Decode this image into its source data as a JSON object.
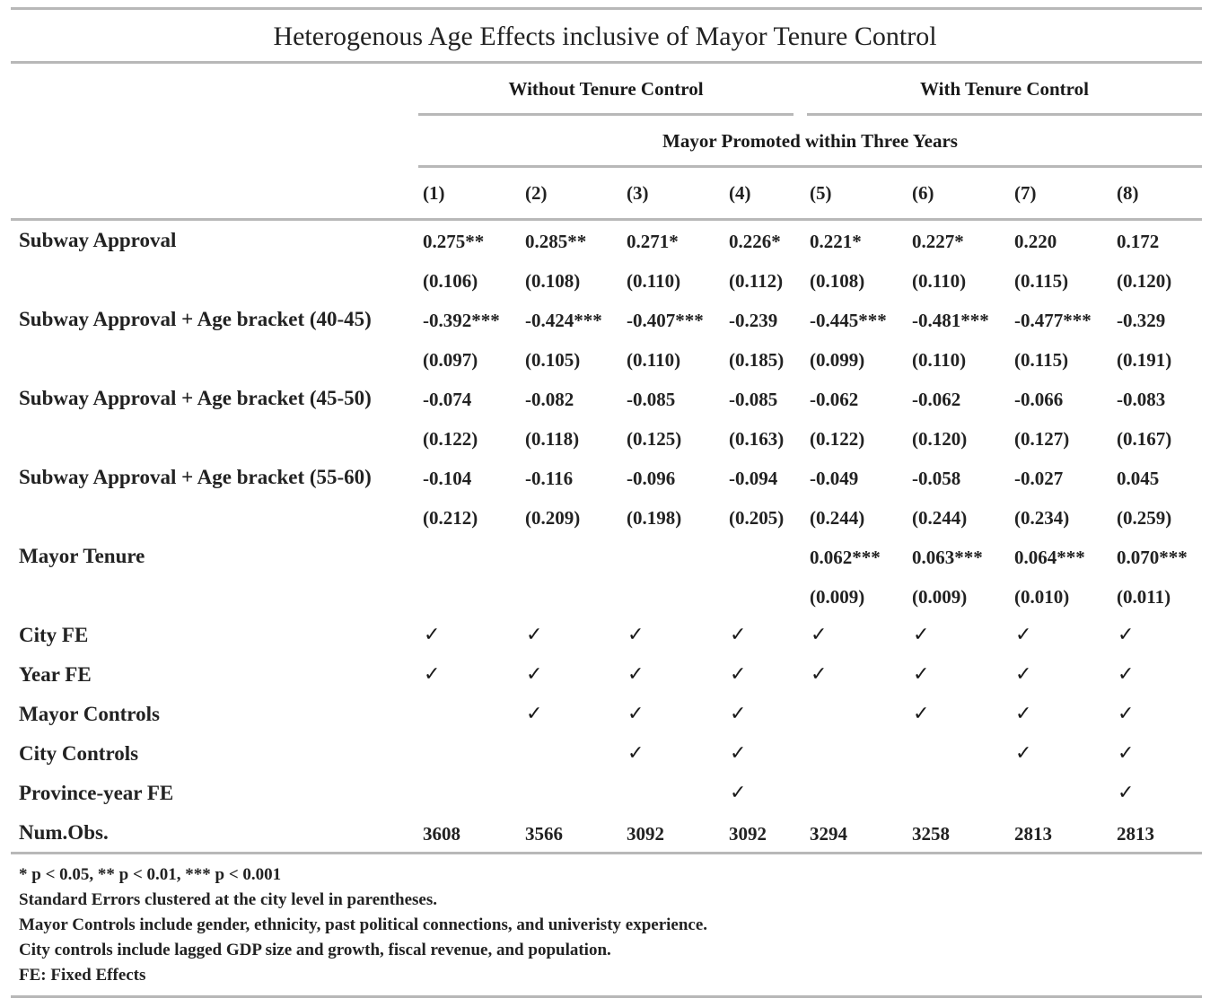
{
  "caption": "Heterogenous Age Effects inclusive of Mayor Tenure Control",
  "group_headers": [
    "Without Tenure Control",
    "With Tenure Control"
  ],
  "dependent_variable": "Mayor Promoted within Three Years",
  "columns": [
    "(1)",
    "(2)",
    "(3)",
    "(4)",
    "(5)",
    "(6)",
    "(7)",
    "(8)"
  ],
  "rows": [
    {
      "label": "Subway Approval",
      "coef": [
        "0.275**",
        "0.285**",
        "0.271*",
        "0.226*",
        "0.221*",
        "0.227*",
        "0.220",
        "0.172"
      ],
      "se": [
        "(0.106)",
        "(0.108)",
        "(0.110)",
        "(0.112)",
        "(0.108)",
        "(0.110)",
        "(0.115)",
        "(0.120)"
      ]
    },
    {
      "label": "Subway Approval + Age bracket (40-45)",
      "coef": [
        "-0.392***",
        "-0.424***",
        "-0.407***",
        "-0.239",
        "-0.445***",
        "-0.481***",
        "-0.477***",
        "-0.329"
      ],
      "se": [
        "(0.097)",
        "(0.105)",
        "(0.110)",
        "(0.185)",
        "(0.099)",
        "(0.110)",
        "(0.115)",
        "(0.191)"
      ]
    },
    {
      "label": "Subway Approval + Age bracket (45-50)",
      "coef": [
        "-0.074",
        "-0.082",
        "-0.085",
        "-0.085",
        "-0.062",
        "-0.062",
        "-0.066",
        "-0.083"
      ],
      "se": [
        "(0.122)",
        "(0.118)",
        "(0.125)",
        "(0.163)",
        "(0.122)",
        "(0.120)",
        "(0.127)",
        "(0.167)"
      ]
    },
    {
      "label": "Subway Approval + Age bracket (55-60)",
      "coef": [
        "-0.104",
        "-0.116",
        "-0.096",
        "-0.094",
        "-0.049",
        "-0.058",
        "-0.027",
        "0.045"
      ],
      "se": [
        "(0.212)",
        "(0.209)",
        "(0.198)",
        "(0.205)",
        "(0.244)",
        "(0.244)",
        "(0.234)",
        "(0.259)"
      ]
    },
    {
      "label": "Mayor Tenure",
      "coef": [
        "",
        "",
        "",
        "",
        "0.062***",
        "0.063***",
        "0.064***",
        "0.070***"
      ],
      "se": [
        "",
        "",
        "",
        "",
        "(0.009)",
        "(0.009)",
        "(0.010)",
        "(0.011)"
      ]
    }
  ],
  "check_symbol": "✓",
  "indicators": [
    {
      "label": "City FE",
      "checks": [
        true,
        true,
        true,
        true,
        true,
        true,
        true,
        true
      ]
    },
    {
      "label": "Year FE",
      "checks": [
        true,
        true,
        true,
        true,
        true,
        true,
        true,
        true
      ]
    },
    {
      "label": "Mayor Controls",
      "checks": [
        false,
        true,
        true,
        true,
        false,
        true,
        true,
        true
      ]
    },
    {
      "label": "City Controls",
      "checks": [
        false,
        false,
        true,
        true,
        false,
        false,
        true,
        true
      ]
    },
    {
      "label": "Province-year FE",
      "checks": [
        false,
        false,
        false,
        true,
        false,
        false,
        false,
        true
      ]
    }
  ],
  "num_obs": {
    "label": "Num.Obs.",
    "values": [
      "3608",
      "3566",
      "3092",
      "3092",
      "3294",
      "3258",
      "2813",
      "2813"
    ]
  },
  "notes": [
    "* p < 0.05, ** p < 0.01, *** p < 0.001",
    "Standard Errors clustered at the city level in parentheses.",
    "Mayor Controls include gender, ethnicity, past political connections, and univeristy experience.",
    "City controls include lagged GDP size and growth, fiscal revenue, and population.",
    "FE: Fixed Effects"
  ]
}
